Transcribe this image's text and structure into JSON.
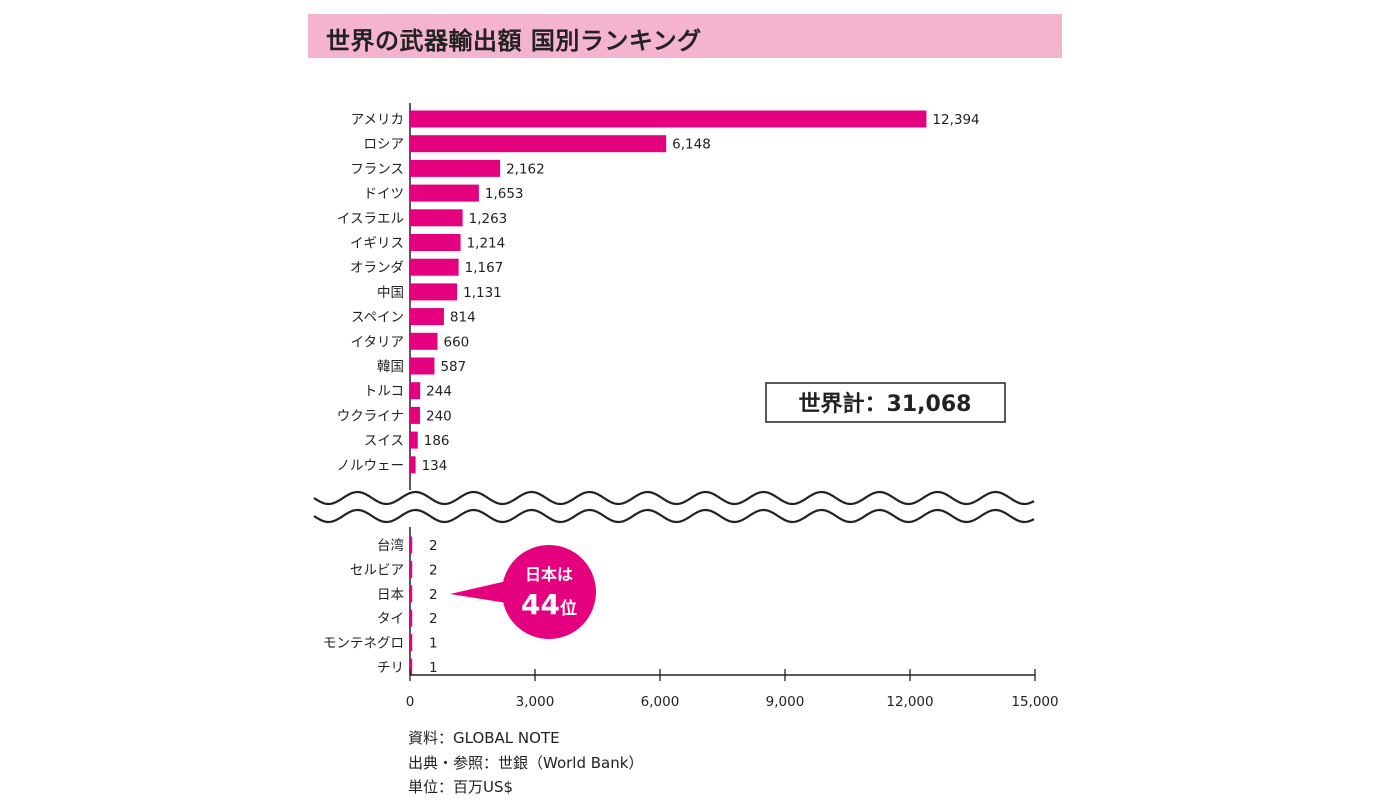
{
  "header": {
    "title": "世界の武器輸出額 国別ランキング"
  },
  "chart_data": {
    "type": "bar",
    "orientation": "horizontal",
    "title": "世界の武器輸出額 国別ランキング",
    "upper_group": {
      "categories": [
        "アメリカ",
        "ロシア",
        "フランス",
        "ドイツ",
        "イスラエル",
        "イギリス",
        "オランダ",
        "中国",
        "スペイン",
        "イタリア",
        "韓国",
        "トルコ",
        "ウクライナ",
        "スイス",
        "ノルウェー"
      ],
      "values": [
        12394,
        6148,
        2162,
        1653,
        1263,
        1214,
        1167,
        1131,
        814,
        660,
        587,
        244,
        240,
        186,
        134
      ],
      "labels": [
        "12,394",
        "6,148",
        "2,162",
        "1,653",
        "1,263",
        "1,214",
        "1,167",
        "1,131",
        "814",
        "660",
        "587",
        "244",
        "240",
        "186",
        "134"
      ]
    },
    "lower_group": {
      "categories": [
        "台湾",
        "セルビア",
        "日本",
        "タイ",
        "モンテネグロ",
        "チリ"
      ],
      "values": [
        2,
        2,
        2,
        2,
        1,
        1
      ],
      "labels": [
        "2",
        "2",
        "2",
        "2",
        "1",
        "1"
      ]
    },
    "x_ticks": [
      0,
      3000,
      6000,
      9000,
      12000,
      15000
    ],
    "x_tick_labels": [
      "0",
      "3,000",
      "6,000",
      "9,000",
      "12,000",
      "15,000"
    ],
    "xlim": [
      0,
      15000
    ],
    "axis_break": "between ノルウェー and 台湾",
    "bar_color": "#e4007f",
    "world_total": "世界計：31,068",
    "callout": {
      "line1": "日本は",
      "line2_number": "44",
      "line2_suffix": "位",
      "color": "#e4007f"
    }
  },
  "sources": {
    "line1": "資料：GLOBAL NOTE",
    "line2": "出典・参照：世銀（World Bank）",
    "line3": "単位：百万US$"
  }
}
